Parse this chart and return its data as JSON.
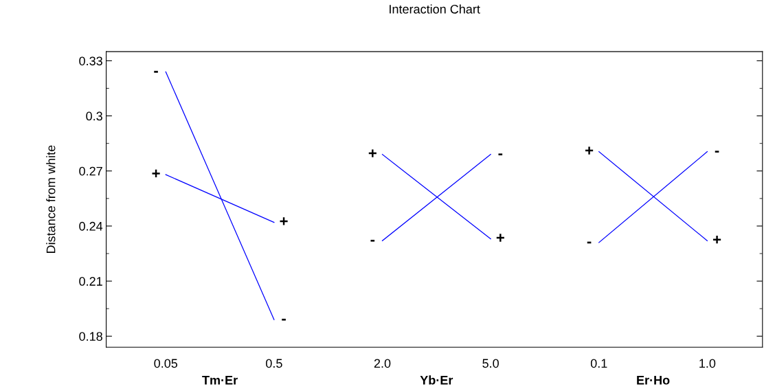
{
  "chart_data": {
    "type": "line",
    "title": "Interaction Chart",
    "ylabel": "Distance from white",
    "categories": [
      "0.05",
      "0.5",
      "2.0",
      "5.0",
      "0.1",
      "1.0"
    ],
    "annotations": [
      "Tm·Er",
      "Yb·Er",
      "Er·Ho"
    ],
    "series": [
      {
        "name": "-",
        "color": "#0000ff",
        "values": [
          0.324,
          0.189,
          null,
          null,
          null,
          null
        ]
      },
      {
        "name": "+",
        "color": "#0000ff",
        "values": [
          0.268,
          0.242,
          null,
          null,
          null,
          null
        ]
      },
      {
        "name": "+",
        "color": "#0000ff",
        "values": [
          null,
          null,
          0.279,
          0.233,
          null,
          null
        ]
      },
      {
        "name": "-",
        "color": "#0000ff",
        "values": [
          null,
          null,
          0.232,
          0.279,
          null,
          null
        ]
      },
      {
        "name": "+",
        "color": "#0000ff",
        "values": [
          null,
          null,
          null,
          null,
          0.2805,
          0.232
        ]
      },
      {
        "name": "-",
        "color": "#0000ff",
        "values": [
          null,
          null,
          null,
          null,
          0.231,
          0.2805
        ]
      }
    ],
    "ylim": [
      0.174,
      0.335
    ],
    "yticks": [
      0.18,
      0.21,
      0.24,
      0.27,
      0.3,
      0.33
    ],
    "grid": false,
    "legend": false,
    "marker": "none",
    "line_style": "solid"
  }
}
